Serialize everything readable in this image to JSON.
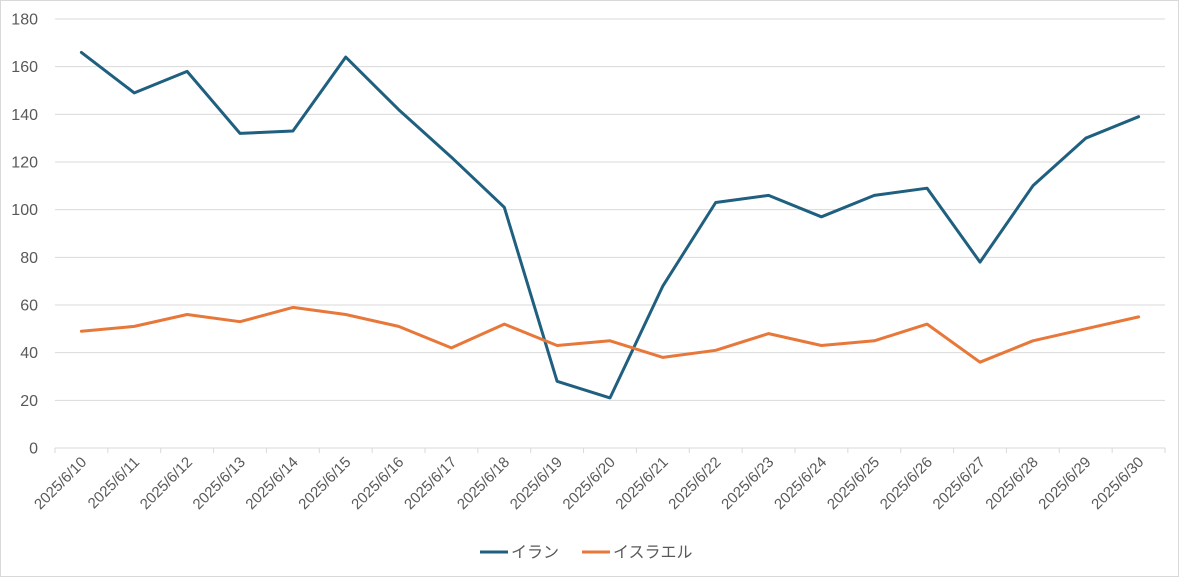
{
  "chart_data": {
    "type": "line",
    "title": "",
    "xlabel": "",
    "ylabel": "",
    "ylim": [
      0,
      180
    ],
    "yticks": [
      0,
      20,
      40,
      60,
      80,
      100,
      120,
      140,
      160,
      180
    ],
    "grid": true,
    "legend_position": "bottom",
    "categories": [
      "2025/6/10",
      "2025/6/11",
      "2025/6/12",
      "2025/6/13",
      "2025/6/14",
      "2025/6/15",
      "2025/6/16",
      "2025/6/17",
      "2025/6/18",
      "2025/6/19",
      "2025/6/20",
      "2025/6/21",
      "2025/6/22",
      "2025/6/23",
      "2025/6/24",
      "2025/6/25",
      "2025/6/26",
      "2025/6/27",
      "2025/6/28",
      "2025/6/29",
      "2025/6/30"
    ],
    "series": [
      {
        "name": "イラン",
        "color": "#1f5f7f",
        "values": [
          166,
          149,
          158,
          132,
          133,
          164,
          142,
          122,
          101,
          28,
          21,
          68,
          103,
          106,
          97,
          106,
          109,
          78,
          110,
          130,
          139
        ]
      },
      {
        "name": "イスラエル",
        "color": "#e8773a",
        "values": [
          49,
          51,
          56,
          53,
          59,
          56,
          51,
          42,
          52,
          43,
          45,
          38,
          41,
          48,
          43,
          45,
          52,
          36,
          45,
          50,
          55
        ]
      }
    ]
  }
}
